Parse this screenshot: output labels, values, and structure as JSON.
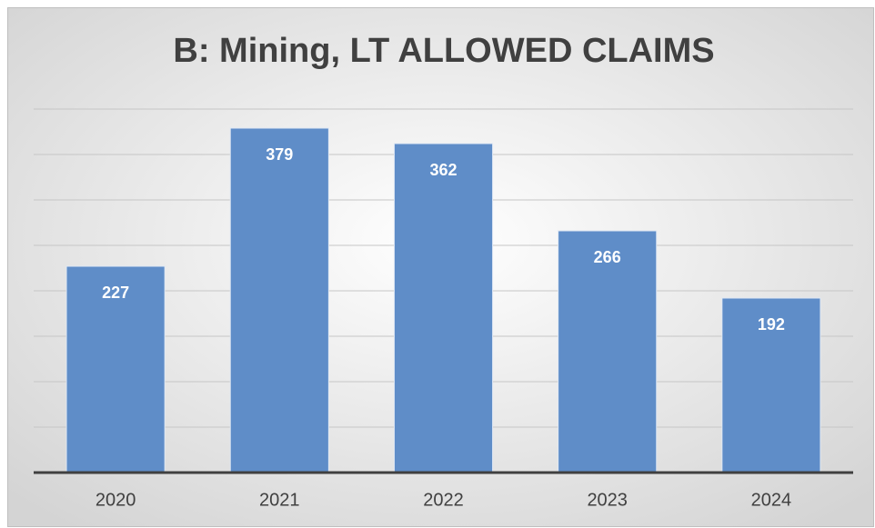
{
  "chart_data": {
    "type": "bar",
    "title": "B: Mining, LT ALLOWED CLAIMS",
    "categories": [
      "2020",
      "2021",
      "2022",
      "2023",
      "2024"
    ],
    "values": [
      227,
      379,
      362,
      266,
      192
    ],
    "color": "#5f8dc8",
    "ylim": [
      0,
      400
    ],
    "yticks": [
      0,
      50,
      100,
      150,
      200,
      250,
      300,
      350,
      400
    ],
    "grid": true
  }
}
